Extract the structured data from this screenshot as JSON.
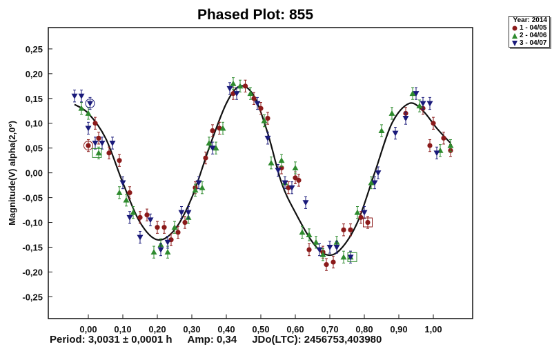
{
  "chart_data": {
    "type": "scatter",
    "title": "Phased Plot: 855",
    "xlabel": "",
    "ylabel": "Magnitude(V) alpha(2,0°)",
    "xlim": [
      -0.116,
      1.114
    ],
    "ylim": [
      -0.294,
      0.293
    ],
    "xticks": [
      "0,00",
      "0,10",
      "0,20",
      "0,30",
      "0,40",
      "0,50",
      "0,60",
      "0,70",
      "0,80",
      "0,90",
      "1,00"
    ],
    "xtick_values": [
      0,
      0.1,
      0.2,
      0.3,
      0.4,
      0.5,
      0.6,
      0.7,
      0.8,
      0.9,
      1.0
    ],
    "yticks": [
      "0,25",
      "0,20",
      "0,15",
      "0,10",
      "0,05",
      "0,00",
      "-0,05",
      "-0,10",
      "-0,15",
      "-0,20",
      "-0,25"
    ],
    "ytick_values": [
      0.25,
      0.2,
      0.15,
      0.1,
      0.05,
      0,
      -0.05,
      -0.1,
      -0.15,
      -0.2,
      -0.25
    ],
    "y_inverted": false,
    "legend": {
      "title": "Year: 2014",
      "placement": "outside-top-right"
    },
    "error": 0.012,
    "series": [
      {
        "name": "1 - 04/05",
        "marker": "circle",
        "color": "#8b1a1a",
        "x": [
          0.0,
          0.02,
          0.03,
          0.06,
          0.09,
          0.12,
          0.15,
          0.17,
          0.2,
          0.22,
          0.24,
          0.26,
          0.28,
          0.31,
          0.34,
          0.36,
          0.38,
          0.42,
          0.455,
          0.48,
          0.5,
          0.52,
          0.56,
          0.58,
          0.6,
          0.61,
          0.64,
          0.68,
          0.69,
          0.71,
          0.74,
          0.76,
          0.79,
          0.81,
          0.92,
          0.97,
          0.99,
          1.0,
          1.03,
          1.05
        ],
        "y": [
          0.055,
          0.1,
          0.07,
          0.04,
          0.025,
          -0.04,
          -0.09,
          -0.085,
          -0.11,
          -0.11,
          -0.135,
          -0.12,
          -0.1,
          -0.03,
          0.03,
          0.085,
          0.09,
          0.16,
          0.175,
          0.15,
          0.13,
          0.11,
          0.01,
          -0.03,
          -0.01,
          -0.015,
          -0.155,
          -0.16,
          -0.185,
          -0.18,
          -0.115,
          -0.115,
          -0.09,
          -0.1,
          0.12,
          0.13,
          0.055,
          0.1,
          0.07,
          0.045
        ]
      },
      {
        "name": "2 - 04/06",
        "marker": "triangle-up",
        "color": "#2e8b2e",
        "x": [
          -0.02,
          0.0,
          0.03,
          0.09,
          0.11,
          0.13,
          0.19,
          0.21,
          0.23,
          0.25,
          0.29,
          0.31,
          0.33,
          0.35,
          0.37,
          0.39,
          0.42,
          0.44,
          0.47,
          0.51,
          0.53,
          0.56,
          0.57,
          0.6,
          0.62,
          0.64,
          0.66,
          0.68,
          0.72,
          0.74,
          0.76,
          0.78,
          0.82,
          0.85,
          0.88,
          0.94,
          0.96,
          1.02,
          1.05
        ],
        "y": [
          0.13,
          0.12,
          0.04,
          -0.04,
          -0.055,
          -0.08,
          -0.16,
          -0.145,
          -0.16,
          -0.11,
          -0.09,
          -0.035,
          -0.03,
          0.06,
          0.05,
          0.09,
          0.18,
          0.175,
          0.16,
          0.105,
          0.02,
          0.025,
          -0.02,
          0.01,
          -0.12,
          -0.125,
          -0.14,
          -0.165,
          -0.14,
          -0.17,
          -0.17,
          -0.08,
          -0.02,
          0.085,
          0.12,
          0.16,
          0.135,
          0.045,
          0.055
        ]
      },
      {
        "name": "3 - 04/07",
        "marker": "triangle-down",
        "color": "#1a1a7a",
        "x": [
          -0.04,
          -0.02,
          0.0,
          0.005,
          0.02,
          0.04,
          0.07,
          0.1,
          0.12,
          0.15,
          0.18,
          0.21,
          0.23,
          0.27,
          0.29,
          0.32,
          0.36,
          0.41,
          0.43,
          0.49,
          0.52,
          0.55,
          0.57,
          0.59,
          0.63,
          0.67,
          0.7,
          0.72,
          0.76,
          0.8,
          0.83,
          0.84,
          0.89,
          0.92,
          0.95,
          0.97,
          0.99,
          1.01
        ],
        "y": [
          0.155,
          0.155,
          0.09,
          0.14,
          0.06,
          0.06,
          0.06,
          -0.02,
          -0.09,
          -0.13,
          -0.095,
          -0.155,
          -0.14,
          -0.08,
          -0.08,
          -0.02,
          0.05,
          0.17,
          0.16,
          0.14,
          0.07,
          0.005,
          -0.02,
          -0.03,
          -0.06,
          -0.155,
          -0.15,
          -0.15,
          -0.17,
          -0.08,
          -0.02,
          0.0,
          0.08,
          0.11,
          0.16,
          0.14,
          0.14,
          0.04
        ]
      }
    ],
    "fit_curve": {
      "x": [
        -0.04,
        0.0,
        0.05,
        0.1,
        0.15,
        0.2,
        0.25,
        0.3,
        0.35,
        0.4,
        0.44,
        0.48,
        0.52,
        0.56,
        0.6,
        0.65,
        0.69,
        0.73,
        0.78,
        0.83,
        0.88,
        0.93,
        0.97,
        1.01,
        1.05
      ],
      "y": [
        0.138,
        0.12,
        0.07,
        -0.02,
        -0.1,
        -0.135,
        -0.115,
        -0.05,
        0.05,
        0.14,
        0.175,
        0.155,
        0.08,
        -0.02,
        -0.08,
        -0.14,
        -0.165,
        -0.155,
        -0.1,
        0.0,
        0.1,
        0.14,
        0.125,
        0.09,
        0.06
      ]
    },
    "highlights": [
      {
        "shape": "circle",
        "x": 0.0,
        "y": 0.055,
        "color": "#8b1a1a"
      },
      {
        "shape": "circle",
        "x": 0.005,
        "y": 0.14,
        "color": "#1a1a7a"
      },
      {
        "shape": "square",
        "x": 0.025,
        "y": 0.04,
        "color": "#2e8b2e"
      },
      {
        "shape": "square",
        "x": 0.765,
        "y": -0.17,
        "color": "#2e8b2e"
      },
      {
        "shape": "square",
        "x": 0.81,
        "y": -0.1,
        "color": "#8b1a1a"
      }
    ]
  },
  "footer": {
    "period": "Period: 3,0031 ± 0,0001 h",
    "amp": "Amp: 0,34",
    "jdo": "JDo(LTC): 2456753,403980"
  }
}
